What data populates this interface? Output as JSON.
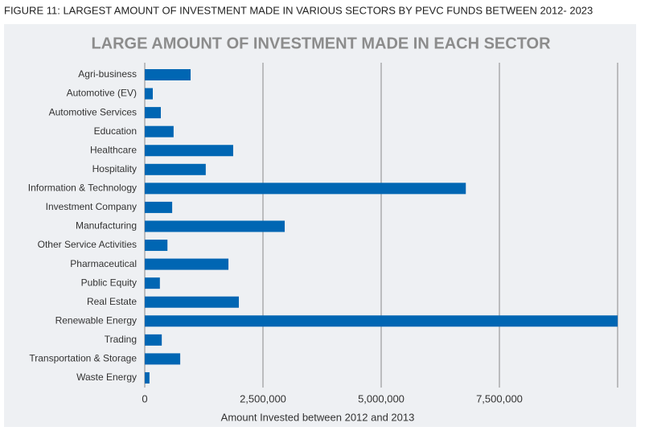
{
  "caption": "FIGURE 11: LARGEST AMOUNT OF INVESTMENT MADE IN VARIOUS SECTORS BY PEVC FUNDS BETWEEN 2012- 2023",
  "chart_data": {
    "type": "barh",
    "title": "LARGE AMOUNT OF INVESTMENT MADE IN EACH SECTOR",
    "xlabel": "Amount Invested between 2012 and 2013",
    "categories": [
      "Agri-business",
      "Automotive (EV)",
      "Automotive Services",
      "Education",
      "Healthcare",
      "Hospitality",
      "Information & Technology",
      "Investment Company",
      "Manufacturing",
      "Other Service Activities",
      "Pharmaceutical",
      "Public Equity",
      "Real Estate",
      "Renewable Energy",
      "Trading",
      "Transportation & Storage",
      "Waste Energy"
    ],
    "values": [
      970000,
      170000,
      340000,
      610000,
      1870000,
      1290000,
      6790000,
      580000,
      2960000,
      480000,
      1770000,
      320000,
      1990000,
      10000000,
      360000,
      750000,
      100000
    ],
    "color": "#0066b3",
    "xlim": [
      0,
      10000000
    ],
    "xticks": [
      0,
      {
        "value": 2500000,
        "label": "2,500,000"
      },
      {
        "value": 5000000,
        "label": "5,000,000"
      },
      {
        "value": 7500000,
        "label": "7,500,000"
      }
    ],
    "grid": true
  }
}
